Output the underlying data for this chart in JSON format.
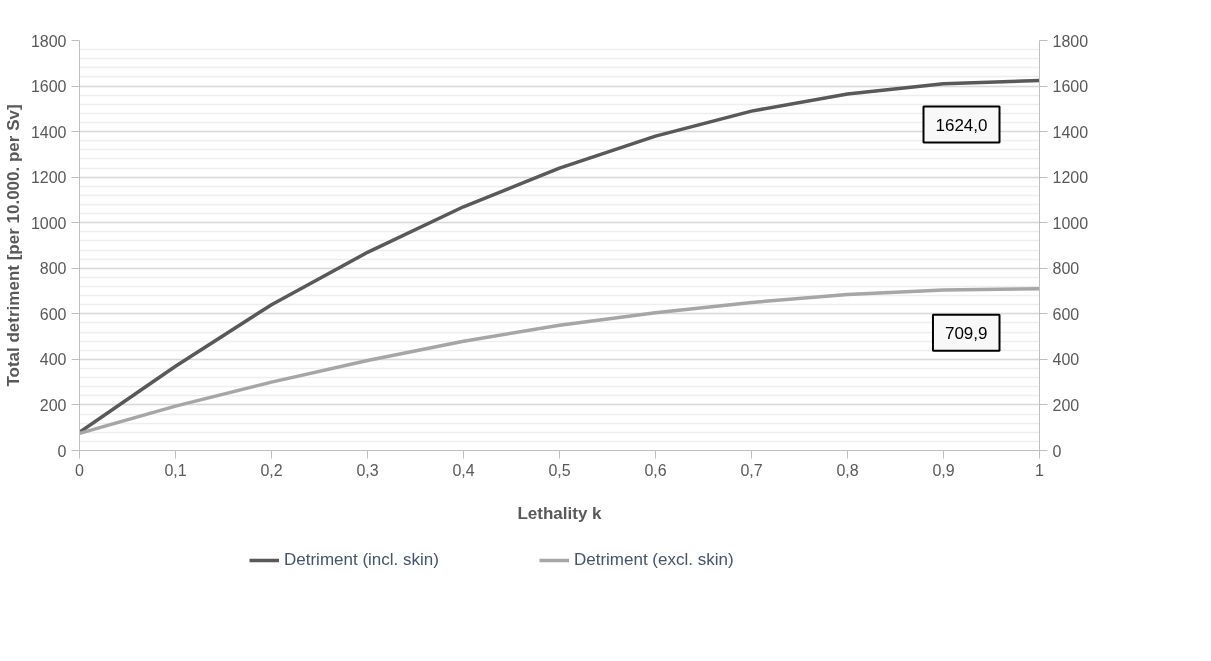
{
  "chart_data": {
    "type": "line",
    "xlabel": "Lethality k",
    "ylabel": "Total detriment [per 10.000. per Sv]",
    "x": [
      0,
      0.1,
      0.2,
      0.3,
      0.4,
      0.5,
      0.6,
      0.7,
      0.8,
      0.9,
      1
    ],
    "series": [
      {
        "name": "Detriment (incl. skin)",
        "color": "#595959",
        "values": [
          80,
          370,
          640,
          870,
          1070,
          1240,
          1380,
          1490,
          1565,
          1610,
          1624
        ]
      },
      {
        "name": "Detriment (excl. skin)",
        "color": "#a6a6a6",
        "values": [
          75,
          195,
          300,
          395,
          480,
          550,
          605,
          650,
          685,
          705,
          709.9
        ]
      }
    ],
    "xlim": [
      0,
      1
    ],
    "xticks": [
      0,
      {
        "value": 0.1,
        "label": "0,1"
      },
      {
        "value": 0.2,
        "label": "0,2"
      },
      {
        "value": 0.3,
        "label": "0,3"
      },
      {
        "value": 0.4,
        "label": "0,4"
      },
      {
        "value": 0.5,
        "label": "0,5"
      },
      {
        "value": 0.6,
        "label": "0,6"
      },
      {
        "value": 0.7,
        "label": "0,7"
      },
      {
        "value": 0.8,
        "label": "0,8"
      },
      {
        "value": 0.9,
        "label": "0,9"
      },
      1
    ],
    "ylim": [
      0,
      1800
    ],
    "yticks": [
      0,
      200,
      400,
      600,
      800,
      1000,
      1200,
      1400,
      1600,
      1800
    ],
    "y2lim": [
      0,
      1800
    ],
    "y2ticks": [
      0,
      200,
      400,
      600,
      800,
      1000,
      1200,
      1400,
      1600,
      1800
    ],
    "annotations": [
      "1624,0",
      "709,9"
    ],
    "grid": "y",
    "legend": "bottom",
    "marker": "none",
    "line_style": "solid"
  }
}
